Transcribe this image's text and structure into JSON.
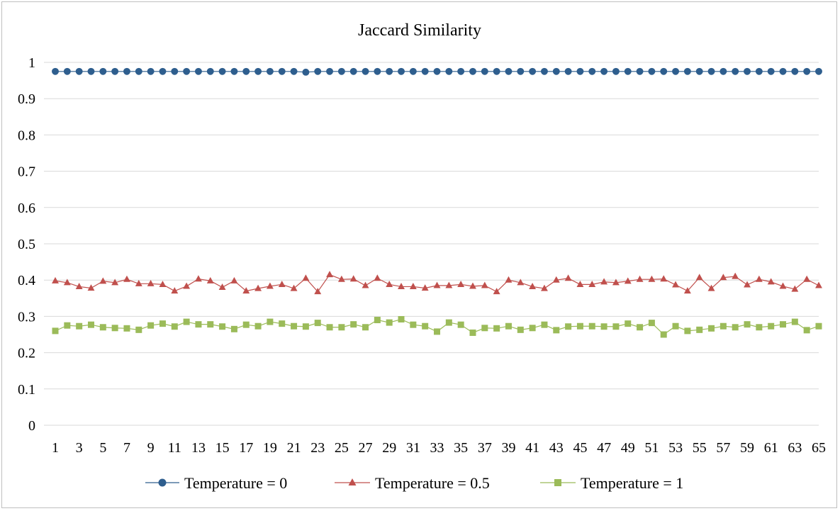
{
  "chart_data": {
    "type": "line",
    "title": "Jaccard Similarity",
    "xlabel": "",
    "ylabel": "",
    "x": [
      1,
      2,
      3,
      4,
      5,
      6,
      7,
      8,
      9,
      10,
      11,
      12,
      13,
      14,
      15,
      16,
      17,
      18,
      19,
      20,
      21,
      22,
      23,
      24,
      25,
      26,
      27,
      28,
      29,
      30,
      31,
      32,
      33,
      34,
      35,
      36,
      37,
      38,
      39,
      40,
      41,
      42,
      43,
      44,
      45,
      46,
      47,
      48,
      49,
      50,
      51,
      52,
      53,
      54,
      55,
      56,
      57,
      58,
      59,
      60,
      61,
      62,
      63,
      64,
      65
    ],
    "x_tick_labels": [
      "1",
      "3",
      "5",
      "7",
      "9",
      "11",
      "13",
      "15",
      "17",
      "19",
      "21",
      "23",
      "25",
      "27",
      "29",
      "31",
      "33",
      "35",
      "37",
      "39",
      "41",
      "43",
      "45",
      "47",
      "49",
      "51",
      "53",
      "55",
      "57",
      "59",
      "61",
      "63",
      "65"
    ],
    "y_tick_labels": [
      "0",
      "0.1",
      "0.2",
      "0.3",
      "0.4",
      "0.5",
      "0.6",
      "0.7",
      "0.8",
      "0.9",
      "1"
    ],
    "ylim": [
      0,
      1
    ],
    "grid": true,
    "legend_position": "bottom",
    "series": [
      {
        "name": "Temperature = 0",
        "color": "#2e5e8e",
        "marker": "circle",
        "values": [
          0.975,
          0.975,
          0.975,
          0.975,
          0.975,
          0.975,
          0.975,
          0.975,
          0.975,
          0.975,
          0.975,
          0.975,
          0.975,
          0.975,
          0.975,
          0.975,
          0.975,
          0.975,
          0.975,
          0.975,
          0.975,
          0.973,
          0.975,
          0.975,
          0.975,
          0.975,
          0.975,
          0.975,
          0.975,
          0.975,
          0.975,
          0.975,
          0.975,
          0.975,
          0.975,
          0.975,
          0.975,
          0.975,
          0.975,
          0.975,
          0.975,
          0.975,
          0.975,
          0.975,
          0.975,
          0.975,
          0.975,
          0.975,
          0.975,
          0.975,
          0.975,
          0.975,
          0.975,
          0.975,
          0.975,
          0.975,
          0.975,
          0.975,
          0.975,
          0.975,
          0.975,
          0.975,
          0.975,
          0.975,
          0.975
        ]
      },
      {
        "name": "Temperature = 0.5",
        "color": "#c0504d",
        "marker": "triangle",
        "values": [
          0.398,
          0.393,
          0.382,
          0.378,
          0.397,
          0.393,
          0.402,
          0.39,
          0.39,
          0.388,
          0.37,
          0.383,
          0.403,
          0.398,
          0.38,
          0.398,
          0.37,
          0.377,
          0.383,
          0.388,
          0.377,
          0.405,
          0.368,
          0.415,
          0.402,
          0.403,
          0.385,
          0.405,
          0.388,
          0.382,
          0.382,
          0.378,
          0.385,
          0.385,
          0.388,
          0.383,
          0.385,
          0.368,
          0.4,
          0.393,
          0.382,
          0.377,
          0.4,
          0.405,
          0.388,
          0.388,
          0.395,
          0.393,
          0.397,
          0.402,
          0.402,
          0.403,
          0.387,
          0.37,
          0.407,
          0.377,
          0.407,
          0.41,
          0.387,
          0.402,
          0.395,
          0.383,
          0.375,
          0.402,
          0.385
        ]
      },
      {
        "name": "Temperature = 1",
        "color": "#9bbb59",
        "marker": "square",
        "values": [
          0.26,
          0.275,
          0.273,
          0.277,
          0.27,
          0.268,
          0.267,
          0.263,
          0.275,
          0.28,
          0.272,
          0.285,
          0.278,
          0.278,
          0.272,
          0.265,
          0.277,
          0.273,
          0.285,
          0.28,
          0.273,
          0.272,
          0.282,
          0.27,
          0.27,
          0.278,
          0.27,
          0.29,
          0.283,
          0.292,
          0.277,
          0.273,
          0.258,
          0.283,
          0.277,
          0.255,
          0.268,
          0.267,
          0.273,
          0.263,
          0.268,
          0.277,
          0.262,
          0.272,
          0.273,
          0.273,
          0.272,
          0.272,
          0.28,
          0.27,
          0.282,
          0.25,
          0.273,
          0.26,
          0.263,
          0.267,
          0.273,
          0.27,
          0.278,
          0.27,
          0.273,
          0.278,
          0.285,
          0.262,
          0.273
        ]
      }
    ]
  }
}
